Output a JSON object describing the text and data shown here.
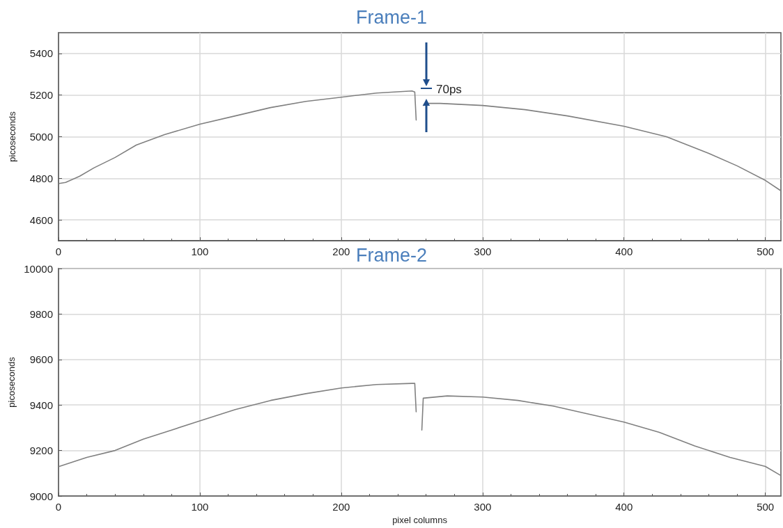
{
  "chart_data": [
    {
      "type": "line",
      "title": "Frame-1",
      "ylabel": "picoseconds",
      "color": "#808080",
      "marker": "none",
      "grid": true,
      "x": [
        0.5,
        5,
        15,
        25,
        40,
        55,
        75,
        100,
        125,
        150,
        175,
        200,
        225,
        250,
        252,
        253,
        254,
        257,
        258,
        259,
        270,
        300,
        330,
        360,
        400,
        430,
        460,
        480,
        500,
        511
      ],
      "values": [
        4775,
        4780,
        4810,
        4850,
        4900,
        4960,
        5010,
        5060,
        5100,
        5140,
        5170,
        5190,
        5210,
        5220,
        5215,
        5080,
        null,
        null,
        5150,
        5160,
        5160,
        5150,
        5130,
        5100,
        5050,
        5000,
        4920,
        4860,
        4790,
        4740
      ],
      "xlim": [
        0,
        511
      ],
      "ylim": [
        4500,
        5500
      ],
      "xticks": [
        0,
        100,
        200,
        300,
        400,
        500
      ],
      "yticks": [
        4600,
        4800,
        5000,
        5200,
        5400
      ],
      "annotations": [
        "70ps"
      ]
    },
    {
      "type": "line",
      "title": "Frame-2",
      "xlabel": "pixel columns",
      "ylabel": "picoseconds",
      "color": "#808080",
      "marker": "none",
      "grid": true,
      "x": [
        0.5,
        20,
        40,
        60,
        80,
        100,
        125,
        150,
        175,
        200,
        225,
        250,
        252,
        253,
        254,
        256,
        257,
        258,
        275,
        300,
        325,
        350,
        375,
        400,
        425,
        450,
        475,
        500,
        511
      ],
      "values": [
        9130,
        9170,
        9200,
        9250,
        9290,
        9330,
        9380,
        9420,
        9450,
        9475,
        9490,
        9495,
        9495,
        9370,
        null,
        null,
        9290,
        9430,
        9440,
        9435,
        9420,
        9395,
        9360,
        9325,
        9280,
        9220,
        9170,
        9130,
        9090
      ],
      "xlim": [
        0,
        511
      ],
      "ylim": [
        9000,
        10000
      ],
      "xticks": [
        0,
        100,
        200,
        300,
        400,
        500
      ],
      "yticks": [
        9000,
        9200,
        9400,
        9600,
        9800,
        10000
      ]
    }
  ]
}
